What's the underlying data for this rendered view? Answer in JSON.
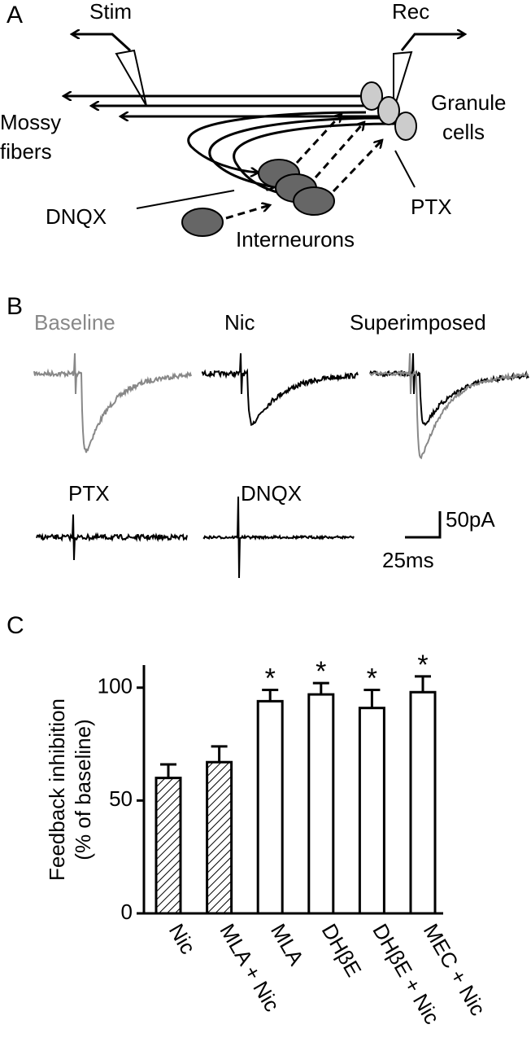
{
  "panel_a": {
    "label": "A",
    "stim": "Stim",
    "rec": "Rec",
    "mossy_fibers": [
      "Mossy",
      "fibers"
    ],
    "granule_cells": [
      "Granule",
      "cells"
    ],
    "dnqx": "DNQX",
    "ptx": "PTX",
    "interneurons": "Interneurons"
  },
  "panel_b": {
    "label": "B",
    "traces": [
      "Baseline",
      "Nic",
      "Superimposed",
      "PTX",
      "DNQX"
    ],
    "scale_y": "50pA",
    "scale_x": "25ms"
  },
  "panel_c_label": "C",
  "chart_data": {
    "type": "bar",
    "y_label": [
      "Feedback inhibition",
      "(% of baseline)"
    ],
    "categories": [
      "Nic",
      "MLA + Nic",
      "MLA",
      "DHβE",
      "DHβE + Nic",
      "MEC + Nic"
    ],
    "values": [
      60,
      67,
      94,
      97,
      91,
      98
    ],
    "errors": [
      6,
      7,
      5,
      5,
      8,
      7
    ],
    "fills": [
      "hatched",
      "hatched",
      "open",
      "open",
      "open",
      "open"
    ],
    "stars": [
      null,
      null,
      "*",
      "*",
      "*",
      "*"
    ],
    "ylim": [
      0,
      110
    ],
    "yticks": [
      0,
      50,
      100
    ]
  }
}
